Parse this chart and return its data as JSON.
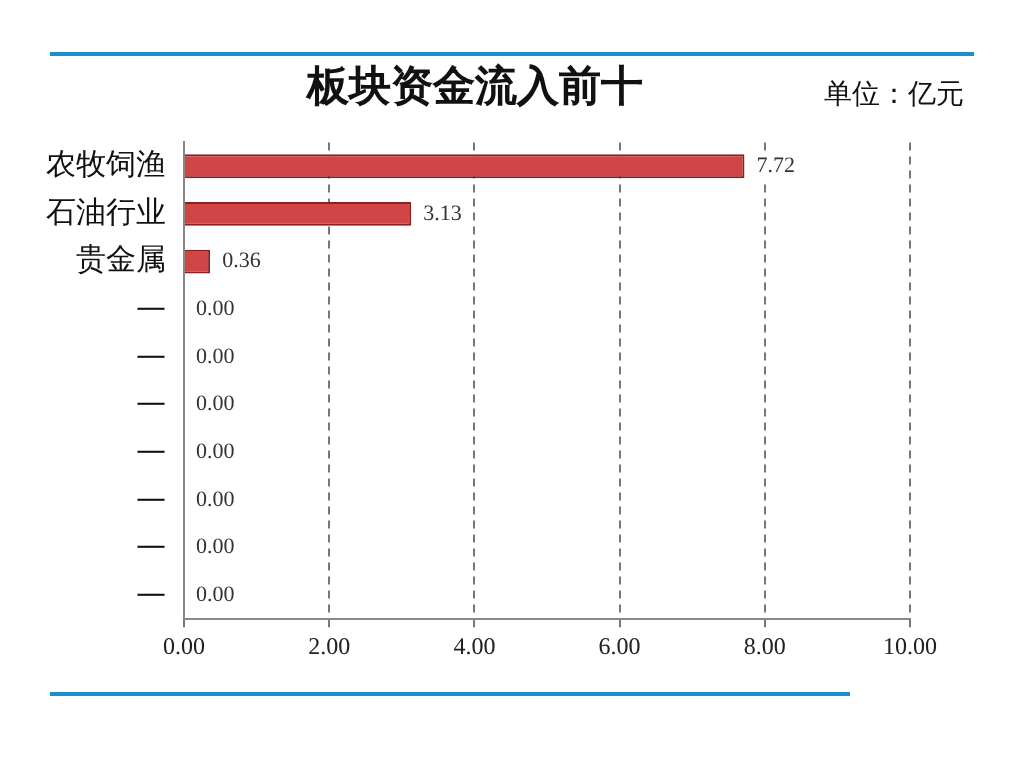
{
  "chart_data": {
    "type": "bar",
    "orientation": "horizontal",
    "title": "板块资金流入前十",
    "annotations": [
      "单位：亿元"
    ],
    "categories": [
      "农牧饲渔",
      "石油行业",
      "贵金属",
      "—",
      "—",
      "—",
      "—",
      "—",
      "—",
      "—"
    ],
    "values": [
      7.72,
      3.13,
      0.36,
      0,
      0,
      0,
      0,
      0,
      0,
      0
    ],
    "value_labels": [
      "7.72",
      "3.13",
      "0.36",
      "0.00",
      "0.00",
      "0.00",
      "0.00",
      "0.00",
      "0.00",
      "0.00"
    ],
    "color": "#d04545",
    "xlim": [
      0,
      10
    ],
    "xticks": [
      {
        "value": 0,
        "label": "0.00"
      },
      {
        "value": 2,
        "label": "2.00"
      },
      {
        "value": 4,
        "label": "4.00"
      },
      {
        "value": 6,
        "label": "6.00"
      },
      {
        "value": 8,
        "label": "8.00"
      },
      {
        "value": 10,
        "label": "10.00"
      }
    ],
    "grid": "x",
    "legend": false
  }
}
